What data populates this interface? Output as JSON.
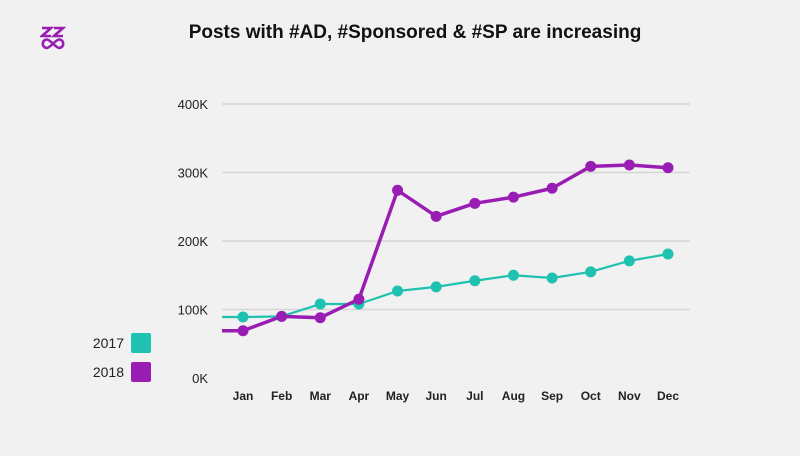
{
  "chart_data": {
    "type": "line",
    "title": "Posts with #AD, #Sponsored & #SP are increasing",
    "categories": [
      "Jan",
      "Feb",
      "Mar",
      "Apr",
      "May",
      "Jun",
      "Jul",
      "Aug",
      "Sep",
      "Oct",
      "Nov",
      "Dec"
    ],
    "yticks": [
      "0K",
      "100K",
      "200K",
      "300K",
      "400K"
    ],
    "ylim": [
      0,
      400000
    ],
    "grid": true,
    "legend_placement": "bottom-left",
    "series": [
      {
        "name": "2017",
        "color": "#1fc1b1",
        "values": [
          89000,
          90000,
          108000,
          108000,
          127000,
          133000,
          142000,
          150000,
          146000,
          155000,
          171000,
          181000
        ]
      },
      {
        "name": "2018",
        "color": "#9a1db3",
        "values": [
          69000,
          90000,
          88000,
          115000,
          274000,
          236000,
          255000,
          264000,
          277000,
          309000,
          311000,
          307000
        ]
      }
    ]
  },
  "logo": {
    "color": "#9a1db3",
    "icon": "zz-infinity-logo"
  }
}
